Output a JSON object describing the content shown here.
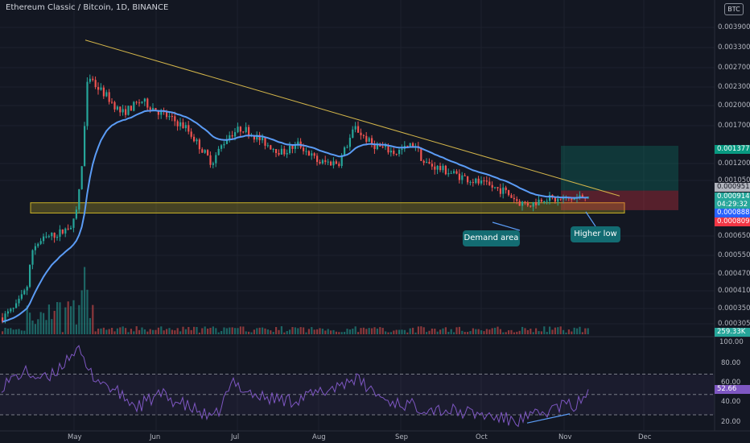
{
  "title": "Ethereum Classic / Bitcoin, 1D, BINANCE",
  "currency_badge": "BTC",
  "colors": {
    "background": "#131722",
    "up": "#26a69a",
    "down": "#ef5350",
    "ema": "#5b9cf6",
    "trendline": "#d4b64a",
    "demand_zone": "#c9b227",
    "rsi_line": "#7e57c2",
    "callout_bg": "#136c72"
  },
  "chart_data": [
    {
      "type": "candlestick",
      "scale": "log",
      "x_axis_ticks": [
        "May",
        "Jun",
        "Jul",
        "Aug",
        "Sep",
        "Oct",
        "Nov",
        "Dec"
      ],
      "y_axis_ticks": [
        "0.003900",
        "0.003300",
        "0.002700",
        "0.002300",
        "0.002000",
        "0.001700",
        "0.001200",
        "0.001050",
        "0.000650",
        "0.000550",
        "0.000470",
        "0.000410",
        "0.000350",
        "0.000305"
      ],
      "price_tags": [
        {
          "label": "0.001377",
          "kind": "target"
        },
        {
          "label": "0.000951",
          "kind": "entry"
        },
        {
          "label": "0.000914",
          "kind": "last"
        },
        {
          "label": "04:29:32",
          "kind": "countdown"
        },
        {
          "label": "0.000888",
          "kind": "level"
        },
        {
          "label": "0.000809",
          "kind": "stop"
        }
      ],
      "volume_tag": "259.33K",
      "annotations": [
        "Demand area",
        "Higher low"
      ],
      "descending_trendline": {
        "from_price": 0.0033,
        "to_price": 0.00091
      },
      "demand_zone": {
        "low": 0.00079,
        "high": 0.00086
      },
      "position": {
        "entry": 0.000951,
        "target": 0.001377,
        "stop": 0.000809
      }
    },
    {
      "type": "line",
      "y_axis_ticks": [
        "100.00",
        "80.00",
        "60.00",
        "40.00",
        "20.00"
      ],
      "ylim": [
        15,
        102
      ],
      "bands": [
        70,
        50,
        30
      ],
      "value_tag": "52.66"
    }
  ]
}
